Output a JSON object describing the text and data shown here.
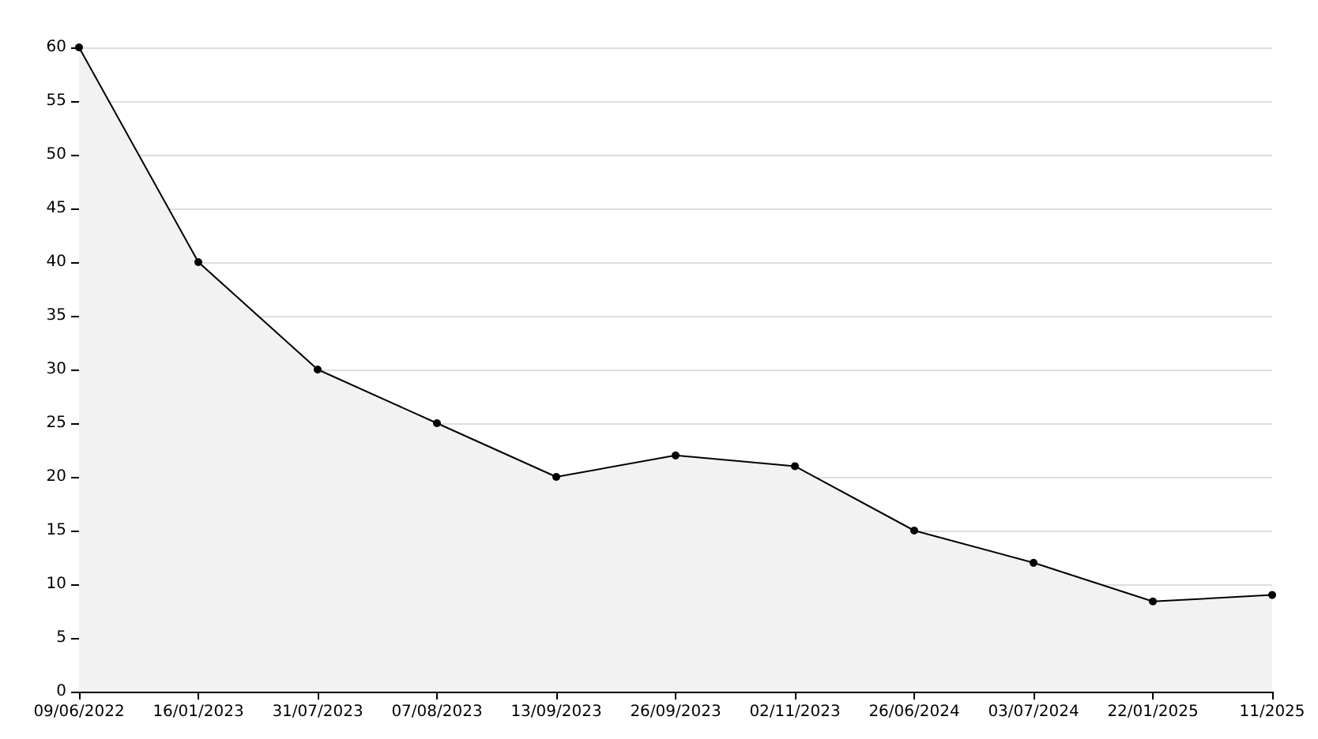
{
  "chart_data": {
    "type": "area",
    "categories": [
      "09/06/2022",
      "16/01/2023",
      "31/07/2023",
      "07/08/2023",
      "13/09/2023",
      "26/09/2023",
      "02/11/2023",
      "26/06/2024",
      "03/07/2024",
      "22/01/2025",
      "11/2025"
    ],
    "series": [
      {
        "color": "#000000",
        "values": [
          60,
          40,
          30,
          25,
          20,
          22,
          21,
          15,
          12,
          8.4,
          9
        ]
      }
    ],
    "ylim": [
      0,
      60
    ],
    "yticks": [
      0,
      5,
      10,
      15,
      20,
      25,
      30,
      35,
      40,
      45,
      50,
      55,
      60
    ],
    "grid": "y",
    "marker": "circle",
    "line_style": "solid"
  }
}
